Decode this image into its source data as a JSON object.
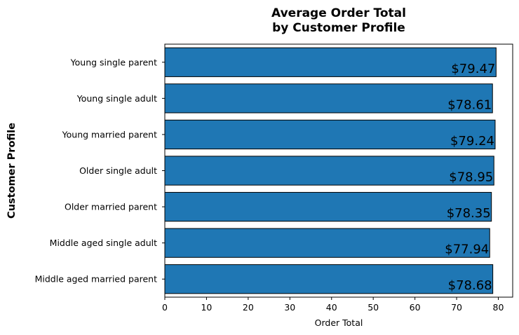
{
  "chart_data": {
    "type": "bar",
    "orientation": "horizontal",
    "title": "Average Order Total\nby Customer Profile",
    "xlabel": "Order Total",
    "ylabel": "Customer Profile",
    "categories": [
      "Middle aged married parent",
      "Middle aged single adult",
      "Older married parent",
      "Older single adult",
      "Young married parent",
      "Young single adult",
      "Young single parent"
    ],
    "values": [
      78.68,
      77.94,
      78.35,
      78.95,
      79.24,
      78.61,
      79.47
    ],
    "data_labels": [
      "$78.68",
      "$77.94",
      "$78.35",
      "$78.95",
      "$79.24",
      "$78.61",
      "$79.47"
    ],
    "xlim": [
      0,
      83.45
    ],
    "xticks": [
      0,
      10,
      20,
      30,
      40,
      50,
      60,
      70,
      80
    ],
    "bar_color": "#1f77b4",
    "edge_color": "#000000",
    "grid": false
  }
}
